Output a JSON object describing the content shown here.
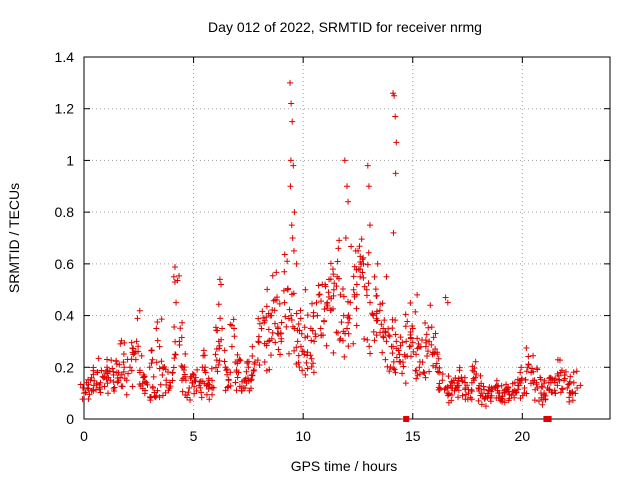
{
  "chart_data": {
    "type": "scatter",
    "title": "Day 012 of 2022, SRMTID for receiver nrmg",
    "xlabel": "GPS time / hours",
    "ylabel": "SRMTID / TECUs",
    "xlim": [
      0,
      24
    ],
    "ylim": [
      0,
      1.4
    ],
    "xticks": [
      0,
      5,
      10,
      15,
      20
    ],
    "xtick_labels": [
      "0",
      "5",
      "10",
      "15",
      "20"
    ],
    "yticks": [
      0,
      0.2,
      0.4,
      0.6,
      0.8,
      1.0,
      1.2,
      1.4
    ],
    "ytick_labels": [
      "0",
      "0.2",
      "0.4",
      "0.6",
      "0.8",
      "1",
      "1.2",
      "1.4"
    ],
    "grid": true,
    "marker": "+",
    "color": "#e00000",
    "series": [
      {
        "name": "SRMTID",
        "x": [
          0.0,
          0.15,
          0.3,
          0.45,
          0.6,
          0.75,
          0.9,
          1.05,
          1.2,
          1.35,
          1.5,
          1.65,
          1.8,
          1.95,
          2.1,
          2.25,
          2.4,
          2.55,
          2.7,
          2.85,
          3.0,
          3.15,
          3.3,
          3.45,
          3.6,
          3.75,
          3.9,
          4.05,
          4.2,
          4.35,
          4.5,
          4.65,
          4.8,
          4.95,
          5.1,
          5.25,
          5.4,
          5.55,
          5.7,
          5.85,
          6.0,
          6.15,
          6.3,
          6.45,
          6.6,
          6.75,
          6.9,
          7.05,
          7.2,
          7.35,
          7.5,
          7.65,
          7.8,
          7.95,
          8.1,
          8.25,
          8.4,
          8.55,
          8.7,
          8.85,
          9.0,
          9.15,
          9.3,
          9.45,
          9.6,
          9.75,
          9.9,
          10.05,
          10.2,
          10.35,
          10.5,
          10.65,
          10.8,
          10.95,
          11.1,
          11.25,
          11.4,
          11.55,
          11.7,
          11.85,
          12.0,
          12.15,
          12.3,
          12.45,
          12.6,
          12.75,
          12.9,
          13.05,
          13.2,
          13.35,
          13.5,
          13.65,
          13.8,
          13.95,
          14.1,
          14.25,
          14.4,
          14.55,
          14.7,
          14.85,
          15.0,
          15.15,
          15.3,
          15.45,
          15.6,
          15.75,
          15.9,
          16.05,
          16.2,
          16.35,
          16.5,
          16.65,
          16.8,
          16.95,
          17.1,
          17.25,
          17.4,
          17.55,
          17.7,
          17.85,
          18.0,
          18.15,
          18.3,
          18.45,
          18.6,
          18.75,
          18.9,
          19.05,
          19.2,
          19.35,
          19.5,
          19.65,
          19.8,
          19.95,
          20.1,
          20.25,
          20.4,
          20.55,
          20.7,
          20.85,
          21.0,
          21.15,
          21.3,
          21.45,
          21.6,
          21.75,
          21.9,
          22.05,
          22.2,
          22.35,
          22.5,
          22.65,
          9.4,
          9.45,
          9.5,
          9.55,
          9.6,
          9.42,
          9.48,
          9.52,
          9.58,
          9.44,
          11.9,
          12.0,
          12.05,
          11.95,
          12.95,
          13.0,
          13.05,
          14.1,
          14.15,
          14.2,
          14.25,
          14.22,
          14.12,
          4.1,
          4.15,
          6.2,
          6.25,
          3.3,
          14.6,
          16.5,
          16.6,
          9.7,
          10.1,
          11.0,
          12.4,
          12.6,
          13.4,
          13.8,
          15.2,
          15.8,
          8.8,
          8.5
        ],
        "y": [
          0.1,
          0.12,
          0.15,
          0.13,
          0.18,
          0.14,
          0.16,
          0.2,
          0.15,
          0.17,
          0.18,
          0.16,
          0.22,
          0.15,
          0.2,
          0.25,
          0.3,
          0.18,
          0.16,
          0.14,
          0.2,
          0.12,
          0.09,
          0.28,
          0.2,
          0.15,
          0.12,
          0.18,
          0.45,
          0.3,
          0.2,
          0.15,
          0.12,
          0.14,
          0.16,
          0.13,
          0.2,
          0.18,
          0.15,
          0.12,
          0.25,
          0.3,
          0.35,
          0.2,
          0.15,
          0.28,
          0.22,
          0.18,
          0.12,
          0.15,
          0.2,
          0.17,
          0.22,
          0.3,
          0.35,
          0.38,
          0.3,
          0.4,
          0.42,
          0.35,
          0.3,
          0.45,
          0.5,
          0.4,
          0.35,
          0.3,
          0.28,
          0.25,
          0.32,
          0.35,
          0.3,
          0.4,
          0.35,
          0.38,
          0.45,
          0.42,
          0.5,
          0.55,
          0.48,
          0.4,
          0.35,
          0.45,
          0.5,
          0.52,
          0.55,
          0.6,
          0.5,
          0.45,
          0.4,
          0.38,
          0.42,
          0.35,
          0.3,
          0.32,
          0.28,
          0.3,
          0.25,
          0.22,
          0.3,
          0.28,
          0.35,
          0.25,
          0.2,
          0.22,
          0.28,
          0.3,
          0.25,
          0.2,
          0.18,
          0.15,
          0.12,
          0.1,
          0.14,
          0.12,
          0.13,
          0.15,
          0.12,
          0.1,
          0.14,
          0.16,
          0.12,
          0.1,
          0.08,
          0.11,
          0.09,
          0.12,
          0.1,
          0.08,
          0.1,
          0.12,
          0.09,
          0.11,
          0.13,
          0.15,
          0.12,
          0.2,
          0.18,
          0.15,
          0.12,
          0.1,
          0.09,
          0.12,
          0.14,
          0.15,
          0.13,
          0.18,
          0.15,
          0.12,
          0.1,
          0.14,
          0.12,
          0.13,
          1.3,
          1.22,
          1.15,
          0.98,
          0.8,
          0.9,
          0.75,
          0.7,
          0.65,
          1.0,
          1.0,
          0.9,
          0.84,
          0.7,
          0.98,
          0.9,
          0.75,
          1.26,
          1.25,
          1.17,
          1.07,
          0.95,
          0.72,
          0.55,
          0.53,
          0.54,
          0.52,
          0.35,
          0.0,
          0.47,
          0.45,
          0.6,
          0.5,
          0.52,
          0.65,
          0.58,
          0.6,
          0.55,
          0.48,
          0.44,
          0.46,
          0.4
        ],
        "zero_markers_x": [
          14.7,
          21.1,
          21.2
        ]
      }
    ]
  }
}
